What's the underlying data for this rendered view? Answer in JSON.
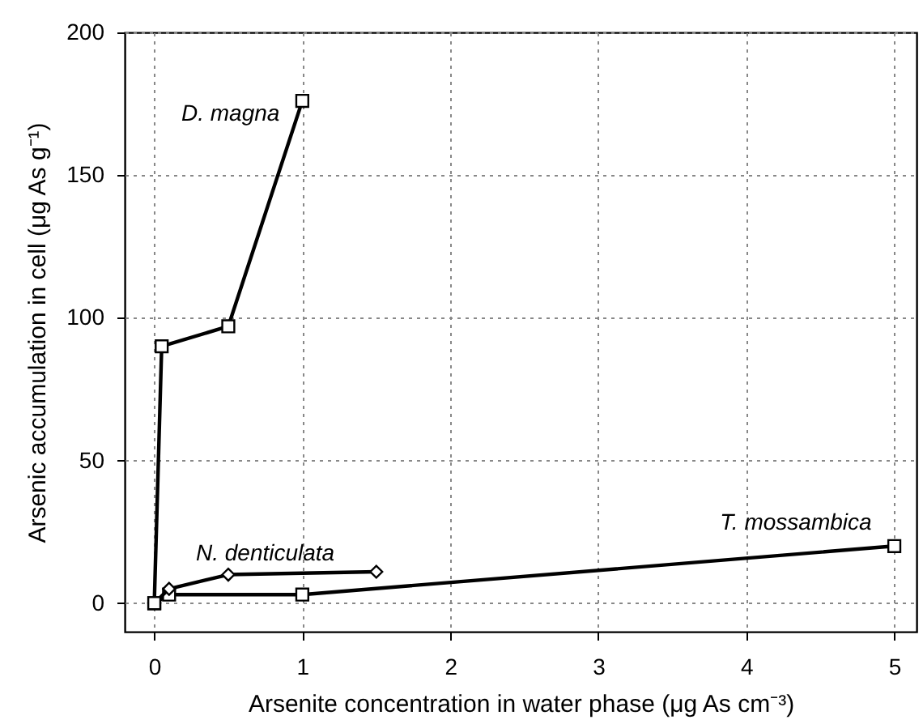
{
  "chart_data": {
    "type": "line",
    "xlabel": "Arsenite concentration in water phase (μg As cm⁻³)",
    "ylabel": "Arsenic accumulation in cell (μg As g⁻¹)",
    "xlim": [
      -0.2,
      5.15
    ],
    "xticks": [
      0,
      1,
      2,
      3,
      4,
      5
    ],
    "ylim": [
      -10,
      200
    ],
    "yticks": [
      0,
      50,
      100,
      150,
      200
    ],
    "grid": true,
    "line_style": "solid",
    "series": [
      {
        "name": "D. magna",
        "color": "#000000",
        "marker": "square",
        "x": [
          0,
          0.05,
          0.5,
          1
        ],
        "values": [
          0,
          90,
          97,
          176
        ]
      },
      {
        "name": "N. denticulata",
        "color": "#000000",
        "marker": "diamond",
        "x": [
          0,
          0.1,
          0.5,
          1.5
        ],
        "values": [
          0,
          5,
          10,
          11
        ]
      },
      {
        "name": "T. mossambica",
        "color": "#000000",
        "marker": "square",
        "x": [
          0,
          0.1,
          1,
          5
        ],
        "values": [
          0,
          3,
          3,
          20
        ]
      }
    ]
  }
}
